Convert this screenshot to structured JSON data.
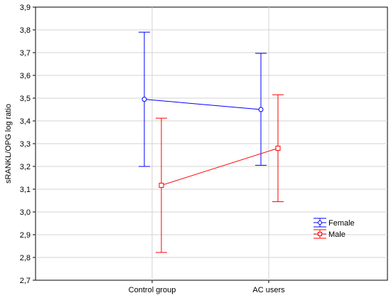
{
  "chart_data": {
    "type": "line",
    "categories": [
      "Control group",
      "AC users"
    ],
    "ylabel": "sRANKL/OPG log ratio",
    "xlabel": "",
    "ylim": [
      2.7,
      3.9
    ],
    "yticks": [
      "2,7",
      "2,8",
      "2,9",
      "3,0",
      "3,1",
      "3,2",
      "3,3",
      "3,4",
      "3,5",
      "3,6",
      "3,7",
      "3,8",
      "3,9"
    ],
    "grid": true,
    "legend_position": "bottom-right",
    "series": [
      {
        "name": "Female",
        "color": "#0000ff",
        "marker": "circle",
        "values": [
          3.495,
          3.45
        ],
        "lower": [
          3.2,
          3.205
        ],
        "upper": [
          3.79,
          3.697
        ]
      },
      {
        "name": "Male",
        "color": "#ff0000",
        "marker": "square",
        "values": [
          3.117,
          3.28
        ],
        "lower": [
          2.822,
          3.045
        ],
        "upper": [
          3.412,
          3.515
        ]
      }
    ]
  }
}
